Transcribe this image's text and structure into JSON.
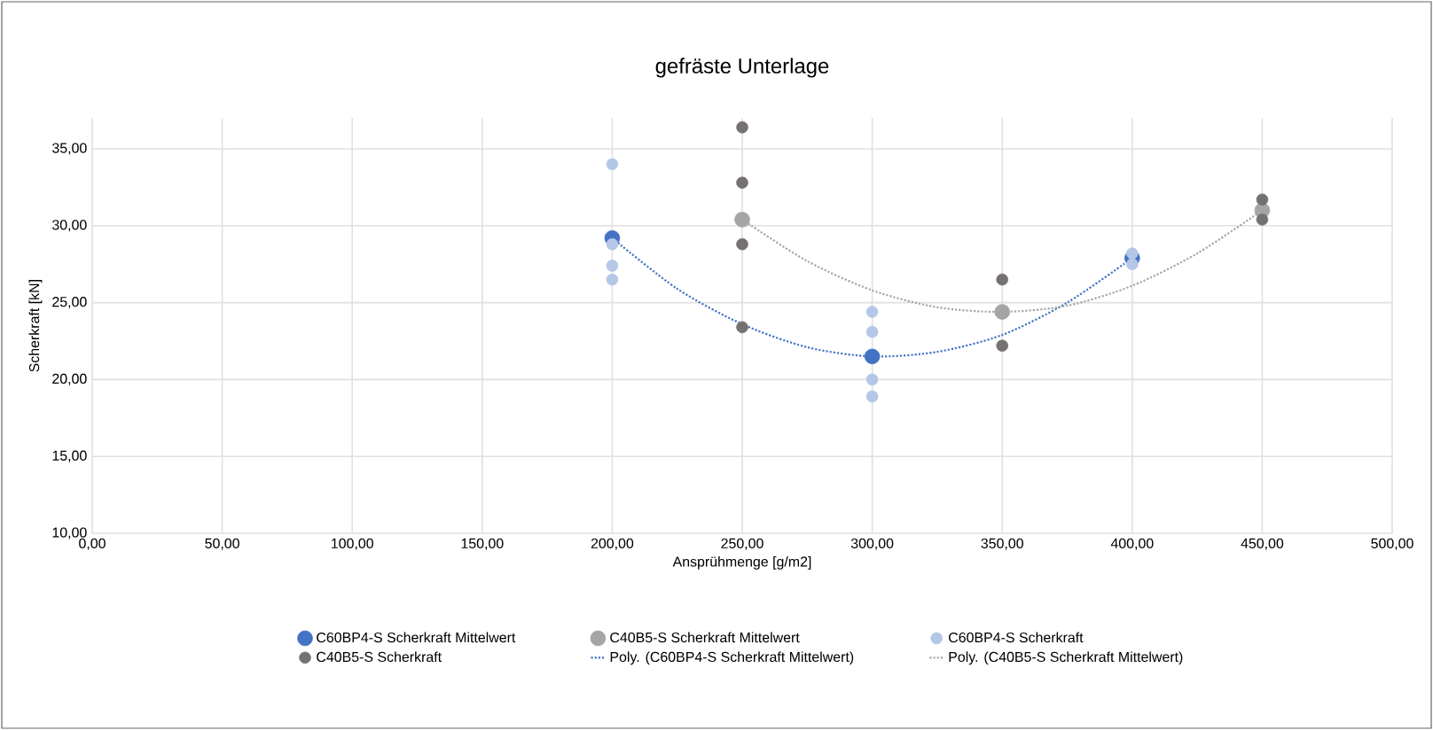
{
  "chart_data": {
    "type": "scatter",
    "title": "gefräste Unterlage",
    "xlabel": "Ansprühmenge [g/m2]",
    "ylabel": "Scherkraft [kN]",
    "xlim": [
      0,
      500
    ],
    "ylim": [
      10,
      37
    ],
    "xticks": [
      {
        "value": 0,
        "label": "0,00"
      },
      {
        "value": 50,
        "label": "50,00"
      },
      {
        "value": 100,
        "label": "100,00"
      },
      {
        "value": 150,
        "label": "150,00"
      },
      {
        "value": 200,
        "label": "200,00"
      },
      {
        "value": 250,
        "label": "250,00"
      },
      {
        "value": 300,
        "label": "300,00"
      },
      {
        "value": 350,
        "label": "350,00"
      },
      {
        "value": 400,
        "label": "400,00"
      },
      {
        "value": 450,
        "label": "450,00"
      },
      {
        "value": 500,
        "label": "500,00"
      }
    ],
    "yticks": [
      {
        "value": 10,
        "label": "10,00"
      },
      {
        "value": 15,
        "label": "15,00"
      },
      {
        "value": 20,
        "label": "20,00"
      },
      {
        "value": 25,
        "label": "25,00"
      },
      {
        "value": 30,
        "label": "30,00"
      },
      {
        "value": 35,
        "label": "35,00"
      }
    ],
    "grid": true,
    "legend": "bottom",
    "series": [
      {
        "name": "C60BP4-S Scherkraft Mittelwert",
        "marker": "circle",
        "color": "#4472c4",
        "x": [
          200,
          300,
          400
        ],
        "values": [
          29.2,
          21.5,
          27.9
        ]
      },
      {
        "name": "C40B5-S Scherkraft Mittelwert",
        "marker": "circle",
        "color": "#a5a5a5",
        "x": [
          250,
          350,
          450
        ],
        "values": [
          30.4,
          24.4,
          31.0
        ]
      },
      {
        "name": "C60BP4-S Scherkraft",
        "marker": "circle",
        "color": "#b4c7e7",
        "x": [
          200,
          200,
          200,
          200,
          300,
          300,
          300,
          300,
          400,
          400
        ],
        "values": [
          34.0,
          28.8,
          27.4,
          26.5,
          24.4,
          23.1,
          20.0,
          18.9,
          28.2,
          27.5
        ]
      },
      {
        "name": "C40B5-S Scherkraft",
        "marker": "circle",
        "color": "#767171",
        "x": [
          250,
          250,
          250,
          250,
          350,
          350,
          450,
          450
        ],
        "values": [
          36.4,
          32.8,
          28.8,
          23.4,
          26.5,
          22.2,
          31.7,
          30.4
        ]
      },
      {
        "name": "Poly. (C60BP4-S Scherkraft Mittelwert)",
        "type": "line",
        "marker": "none",
        "line_style": "dotted",
        "color": "#4472c4",
        "x": [
          200,
          225,
          250,
          275,
          300,
          325,
          350,
          375,
          400
        ],
        "values": [
          29.2,
          25.9,
          23.6,
          22.1,
          21.5,
          21.8,
          22.9,
          25.0,
          27.9
        ]
      },
      {
        "name": "Poly. (C40B5-S Scherkraft Mittelwert)",
        "type": "line",
        "marker": "none",
        "line_style": "dotted",
        "color": "#a5a5a5",
        "x": [
          250,
          275,
          300,
          325,
          350,
          375,
          400,
          425,
          450
        ],
        "values": [
          30.4,
          27.7,
          25.8,
          24.7,
          24.4,
          24.8,
          26.1,
          28.2,
          31.0
        ]
      }
    ]
  }
}
